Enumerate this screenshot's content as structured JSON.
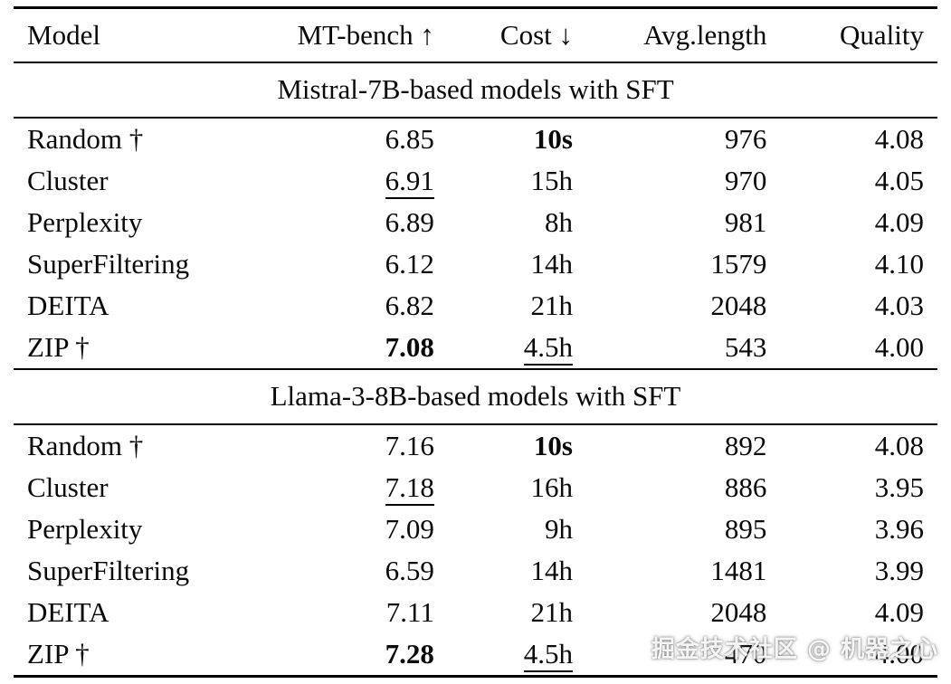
{
  "watermark": "掘金技术社区 @ 机器之心",
  "table": {
    "columns": [
      {
        "label": "Model",
        "align": "left",
        "key": "model"
      },
      {
        "label": "MT-bench ↑",
        "align": "right",
        "key": "mt-bench"
      },
      {
        "label": "Cost ↓",
        "align": "right",
        "key": "cost"
      },
      {
        "label": "Avg.length",
        "align": "right",
        "key": "avg-length"
      },
      {
        "label": "Quality",
        "align": "right",
        "key": "quality"
      }
    ],
    "sections": [
      {
        "title": "Mistral-7B-based models with SFT",
        "rows": [
          {
            "cells": [
              {
                "text": "Random †"
              },
              {
                "text": "6.85"
              },
              {
                "text": "10s",
                "bold": true
              },
              {
                "text": "976"
              },
              {
                "text": "4.08"
              }
            ]
          },
          {
            "cells": [
              {
                "text": "Cluster"
              },
              {
                "text": "6.91",
                "underline": true
              },
              {
                "text": "15h"
              },
              {
                "text": "970"
              },
              {
                "text": "4.05"
              }
            ]
          },
          {
            "cells": [
              {
                "text": "Perplexity"
              },
              {
                "text": "6.89"
              },
              {
                "text": "8h"
              },
              {
                "text": "981"
              },
              {
                "text": "4.09"
              }
            ]
          },
          {
            "cells": [
              {
                "text": "SuperFiltering"
              },
              {
                "text": "6.12"
              },
              {
                "text": "14h"
              },
              {
                "text": "1579"
              },
              {
                "text": "4.10"
              }
            ]
          },
          {
            "cells": [
              {
                "text": "DEITA"
              },
              {
                "text": "6.82"
              },
              {
                "text": "21h"
              },
              {
                "text": "2048"
              },
              {
                "text": "4.03"
              }
            ]
          },
          {
            "cells": [
              {
                "text": "ZIP †"
              },
              {
                "text": "7.08",
                "bold": true
              },
              {
                "text": "4.5h",
                "underline": true
              },
              {
                "text": "543"
              },
              {
                "text": "4.00"
              }
            ]
          }
        ]
      },
      {
        "title": "Llama-3-8B-based models with SFT",
        "rows": [
          {
            "cells": [
              {
                "text": "Random †"
              },
              {
                "text": "7.16"
              },
              {
                "text": "10s",
                "bold": true
              },
              {
                "text": "892"
              },
              {
                "text": "4.08"
              }
            ]
          },
          {
            "cells": [
              {
                "text": "Cluster"
              },
              {
                "text": "7.18",
                "underline": true
              },
              {
                "text": "16h"
              },
              {
                "text": "886"
              },
              {
                "text": "3.95"
              }
            ]
          },
          {
            "cells": [
              {
                "text": "Perplexity"
              },
              {
                "text": "7.09"
              },
              {
                "text": "9h"
              },
              {
                "text": "895"
              },
              {
                "text": "3.96"
              }
            ]
          },
          {
            "cells": [
              {
                "text": "SuperFiltering"
              },
              {
                "text": "6.59"
              },
              {
                "text": "14h"
              },
              {
                "text": "1481"
              },
              {
                "text": "3.99"
              }
            ]
          },
          {
            "cells": [
              {
                "text": "DEITA"
              },
              {
                "text": "7.11"
              },
              {
                "text": "21h"
              },
              {
                "text": "2048"
              },
              {
                "text": "4.09"
              }
            ]
          },
          {
            "cells": [
              {
                "text": "ZIP †"
              },
              {
                "text": "7.28",
                "bold": true
              },
              {
                "text": "4.5h",
                "underline": true
              },
              {
                "text": "470"
              },
              {
                "text": "4.00"
              }
            ]
          }
        ]
      }
    ]
  }
}
